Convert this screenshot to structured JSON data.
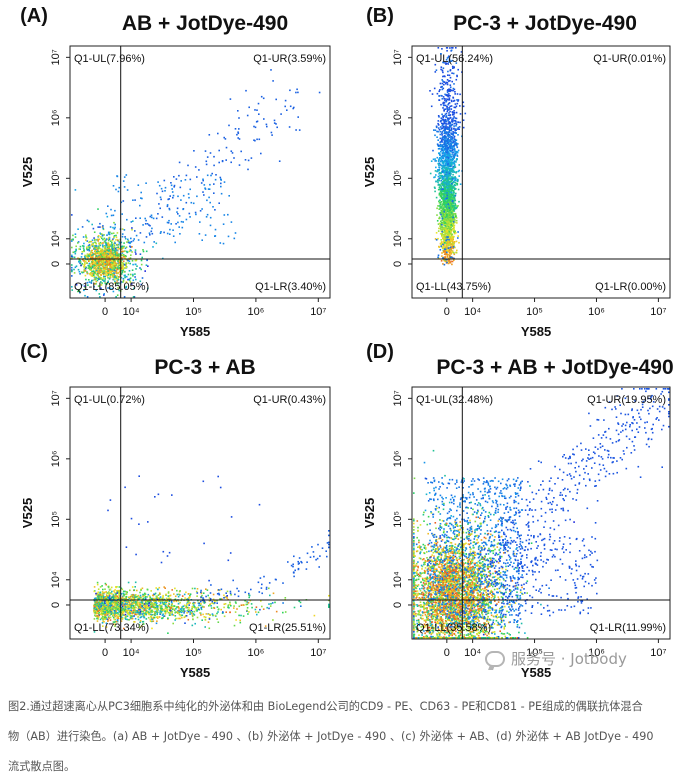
{
  "figure": {
    "watermark": "服务号 · Jotbody",
    "caption_lines": [
      "图2.通过超速离心从PC3细胞系中纯化的外泌体和由 BioLegend公司的CD9 - PE、CD63 - PE和CD81 - PE组成的偶联抗体混合",
      "物（AB）进行染色。(a) AB + JotDye - 490 、(b) 外泌体 + JotDye - 490 、(c) 外泌体 + AB、(d) 外泌体 + AB JotDye - 490",
      "流式散点图。"
    ]
  },
  "chart_data": [
    {
      "type": "scatter",
      "panel": "(A)",
      "title": "AB + JotDye-490",
      "xlabel": "Y585",
      "ylabel": "V525",
      "x_ticks": [
        "0",
        "10⁴",
        "10⁵",
        "10⁶",
        "10⁷"
      ],
      "y_ticks": [
        "0",
        "10⁴",
        "10⁵",
        "10⁶",
        "10⁷"
      ],
      "xlim": [
        -3000,
        10000000
      ],
      "ylim": [
        -3000,
        10000000
      ],
      "gate": {
        "x": 6000,
        "y": 2000
      },
      "quadrants": {
        "UL": "Q1-UL(7.96%)",
        "UR": "Q1-UR(3.59%)",
        "LL": "Q1-LL(85.05%)",
        "LR": "Q1-LR(3.40%)"
      },
      "density": "low"
    },
    {
      "type": "scatter",
      "panel": "(B)",
      "title": "PC-3 + JotDye-490",
      "xlabel": "Y585",
      "ylabel": "V525",
      "x_ticks": [
        "0",
        "10⁴",
        "10⁵",
        "10⁶",
        "10⁷"
      ],
      "y_ticks": [
        "0",
        "10⁴",
        "10⁵",
        "10⁶",
        "10⁷"
      ],
      "xlim": [
        -3000,
        10000000
      ],
      "ylim": [
        -3000,
        10000000
      ],
      "gate": {
        "x": 6000,
        "y": 2000
      },
      "quadrants": {
        "UL": "Q1-UL(56.24%)",
        "UR": "Q1-UR(0.01%)",
        "LL": "Q1-LL(43.75%)",
        "LR": "Q1-LR(0.00%)"
      },
      "density": "vertical"
    },
    {
      "type": "scatter",
      "panel": "(C)",
      "title": "PC-3 + AB",
      "xlabel": "Y585",
      "ylabel": "V525",
      "x_ticks": [
        "0",
        "10⁴",
        "10⁵",
        "10⁶",
        "10⁷"
      ],
      "y_ticks": [
        "0",
        "10⁴",
        "10⁵",
        "10⁶",
        "10⁷"
      ],
      "xlim": [
        -3000,
        10000000
      ],
      "ylim": [
        -3000,
        10000000
      ],
      "gate": {
        "x": 6000,
        "y": 2000
      },
      "quadrants": {
        "UL": "Q1-UL(0.72%)",
        "UR": "Q1-UR(0.43%)",
        "LL": "Q1-LL(73.34%)",
        "LR": "Q1-LR(25.51%)"
      },
      "density": "horizontal"
    },
    {
      "type": "scatter",
      "panel": "(D)",
      "title": "PC-3 + AB + JotDye-490",
      "xlabel": "Y585",
      "ylabel": "V525",
      "x_ticks": [
        "0",
        "10⁴",
        "10⁵",
        "10⁶",
        "10⁷"
      ],
      "y_ticks": [
        "0",
        "10⁴",
        "10⁵",
        "10⁶",
        "10⁷"
      ],
      "xlim": [
        -3000,
        10000000
      ],
      "ylim": [
        -3000,
        10000000
      ],
      "gate": {
        "x": 6000,
        "y": 2000
      },
      "quadrants": {
        "UL": "Q1-UL(32.48%)",
        "UR": "Q1-UR(19.95%)",
        "LL": "Q1-LL(35.58%)",
        "LR": "Q1-LR(11.99%)"
      },
      "density": "dense"
    }
  ]
}
